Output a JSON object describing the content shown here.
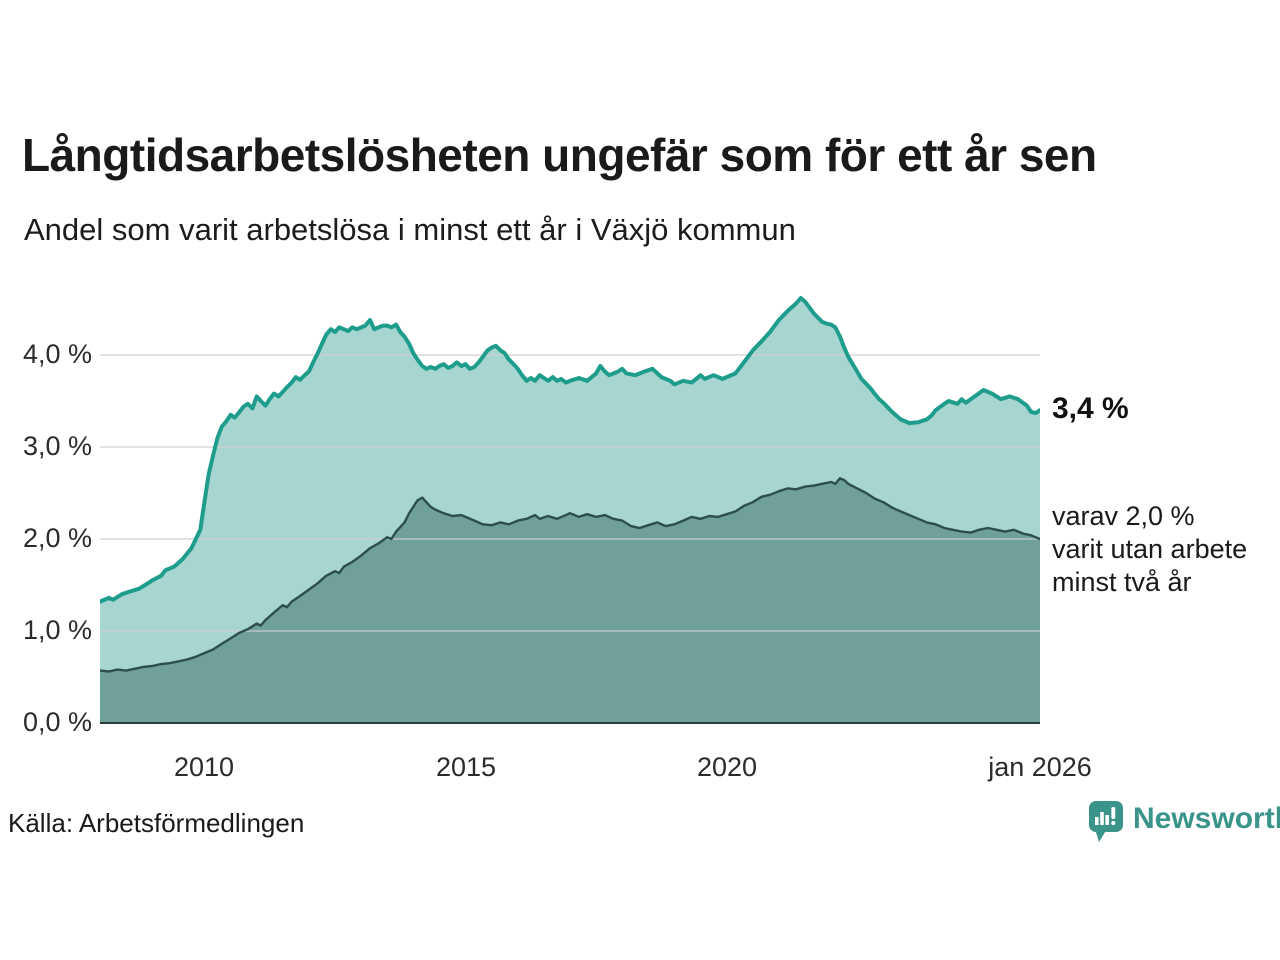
{
  "header": {
    "title": "Långtidsarbetslösheten ungefär som för ett år sen",
    "subtitle": "Andel som varit arbetslösa i minst ett år i Växjö kommun"
  },
  "annotations": {
    "end_value_label": "3,4 %",
    "secondary_lines": [
      "varav 2,0 %",
      "varit utan arbete",
      "minst två år"
    ]
  },
  "footer": {
    "source": "Källa: Arbetsförmedlingen",
    "brand": "Newsworthy"
  },
  "colors": {
    "line_total": "#1e9c8c",
    "fill_total": "#a7d6d0",
    "line_two_year": "#2e4f49",
    "fill_two_year": "#6fa09a",
    "grid": "#cfcfcf",
    "axis": "#2b3a37",
    "brand_teal": "#3b948a"
  },
  "chart_data": {
    "type": "area",
    "title": "Långtidsarbetslösheten ungefär som för ett år sen",
    "subtitle": "Andel som varit arbetslösa i minst ett år i Växjö kommun",
    "grid": true,
    "legend_position": "right-annotations",
    "x_axis": {
      "range": [
        2008,
        2026
      ],
      "ticks": [
        "2010",
        "2015",
        "2020",
        "jan 2026"
      ],
      "tick_years": [
        2010,
        2015,
        2020,
        2026
      ]
    },
    "y_axis": {
      "range": [
        0,
        4.8
      ],
      "unit": "%",
      "ticks": [
        "4,0 %",
        "3,0 %",
        "2,0 %",
        "1,0 %",
        "0,0 %"
      ],
      "tick_values": [
        4,
        3,
        2,
        1,
        0
      ]
    },
    "series": [
      {
        "name": "Arbetslösa minst ett år",
        "end_value": 3.4,
        "end_label": "3,4 %",
        "color": "#1e9c8c",
        "fill": "#a7d6d0",
        "points": [
          [
            2008.0,
            1.32
          ],
          [
            2008.17,
            1.36
          ],
          [
            2008.25,
            1.34
          ],
          [
            2008.42,
            1.4
          ],
          [
            2008.58,
            1.43
          ],
          [
            2008.75,
            1.46
          ],
          [
            2008.92,
            1.52
          ],
          [
            2009.0,
            1.55
          ],
          [
            2009.17,
            1.6
          ],
          [
            2009.25,
            1.66
          ],
          [
            2009.42,
            1.7
          ],
          [
            2009.58,
            1.78
          ],
          [
            2009.75,
            1.9
          ],
          [
            2009.92,
            2.1
          ],
          [
            2010.0,
            2.4
          ],
          [
            2010.08,
            2.7
          ],
          [
            2010.17,
            2.92
          ],
          [
            2010.25,
            3.1
          ],
          [
            2010.33,
            3.22
          ],
          [
            2010.42,
            3.28
          ],
          [
            2010.5,
            3.35
          ],
          [
            2010.58,
            3.32
          ],
          [
            2010.67,
            3.38
          ],
          [
            2010.75,
            3.44
          ],
          [
            2010.83,
            3.47
          ],
          [
            2010.92,
            3.42
          ],
          [
            2011.0,
            3.55
          ],
          [
            2011.08,
            3.5
          ],
          [
            2011.17,
            3.45
          ],
          [
            2011.25,
            3.52
          ],
          [
            2011.33,
            3.58
          ],
          [
            2011.42,
            3.55
          ],
          [
            2011.5,
            3.6
          ],
          [
            2011.58,
            3.65
          ],
          [
            2011.67,
            3.7
          ],
          [
            2011.75,
            3.76
          ],
          [
            2011.83,
            3.73
          ],
          [
            2011.92,
            3.78
          ],
          [
            2012.0,
            3.82
          ],
          [
            2012.08,
            3.92
          ],
          [
            2012.17,
            4.02
          ],
          [
            2012.25,
            4.12
          ],
          [
            2012.33,
            4.22
          ],
          [
            2012.42,
            4.28
          ],
          [
            2012.5,
            4.25
          ],
          [
            2012.58,
            4.3
          ],
          [
            2012.67,
            4.28
          ],
          [
            2012.75,
            4.26
          ],
          [
            2012.83,
            4.3
          ],
          [
            2012.92,
            4.28
          ],
          [
            2013.0,
            4.3
          ],
          [
            2013.08,
            4.32
          ],
          [
            2013.17,
            4.38
          ],
          [
            2013.25,
            4.28
          ],
          [
            2013.33,
            4.3
          ],
          [
            2013.42,
            4.32
          ],
          [
            2013.5,
            4.32
          ],
          [
            2013.58,
            4.3
          ],
          [
            2013.67,
            4.33
          ],
          [
            2013.75,
            4.25
          ],
          [
            2013.83,
            4.2
          ],
          [
            2013.92,
            4.12
          ],
          [
            2014.0,
            4.02
          ],
          [
            2014.08,
            3.95
          ],
          [
            2014.17,
            3.88
          ],
          [
            2014.25,
            3.85
          ],
          [
            2014.33,
            3.87
          ],
          [
            2014.42,
            3.85
          ],
          [
            2014.5,
            3.88
          ],
          [
            2014.58,
            3.9
          ],
          [
            2014.67,
            3.86
          ],
          [
            2014.75,
            3.88
          ],
          [
            2014.83,
            3.92
          ],
          [
            2014.92,
            3.88
          ],
          [
            2015.0,
            3.9
          ],
          [
            2015.08,
            3.85
          ],
          [
            2015.17,
            3.87
          ],
          [
            2015.25,
            3.92
          ],
          [
            2015.33,
            3.98
          ],
          [
            2015.42,
            4.05
          ],
          [
            2015.5,
            4.08
          ],
          [
            2015.58,
            4.1
          ],
          [
            2015.67,
            4.05
          ],
          [
            2015.75,
            4.02
          ],
          [
            2015.83,
            3.95
          ],
          [
            2015.92,
            3.9
          ],
          [
            2016.0,
            3.85
          ],
          [
            2016.08,
            3.78
          ],
          [
            2016.17,
            3.72
          ],
          [
            2016.25,
            3.75
          ],
          [
            2016.33,
            3.72
          ],
          [
            2016.42,
            3.78
          ],
          [
            2016.5,
            3.75
          ],
          [
            2016.58,
            3.72
          ],
          [
            2016.67,
            3.76
          ],
          [
            2016.75,
            3.72
          ],
          [
            2016.83,
            3.74
          ],
          [
            2016.92,
            3.7
          ],
          [
            2017.0,
            3.72
          ],
          [
            2017.17,
            3.75
          ],
          [
            2017.33,
            3.72
          ],
          [
            2017.5,
            3.8
          ],
          [
            2017.58,
            3.88
          ],
          [
            2017.67,
            3.82
          ],
          [
            2017.75,
            3.78
          ],
          [
            2017.92,
            3.82
          ],
          [
            2018.0,
            3.85
          ],
          [
            2018.08,
            3.8
          ],
          [
            2018.25,
            3.78
          ],
          [
            2018.42,
            3.82
          ],
          [
            2018.58,
            3.85
          ],
          [
            2018.75,
            3.76
          ],
          [
            2018.92,
            3.72
          ],
          [
            2019.0,
            3.68
          ],
          [
            2019.17,
            3.72
          ],
          [
            2019.33,
            3.7
          ],
          [
            2019.5,
            3.78
          ],
          [
            2019.58,
            3.74
          ],
          [
            2019.75,
            3.78
          ],
          [
            2019.92,
            3.74
          ],
          [
            2020.0,
            3.76
          ],
          [
            2020.17,
            3.8
          ],
          [
            2020.33,
            3.92
          ],
          [
            2020.5,
            4.05
          ],
          [
            2020.67,
            4.15
          ],
          [
            2020.83,
            4.25
          ],
          [
            2021.0,
            4.38
          ],
          [
            2021.17,
            4.48
          ],
          [
            2021.33,
            4.56
          ],
          [
            2021.42,
            4.62
          ],
          [
            2021.5,
            4.58
          ],
          [
            2021.58,
            4.52
          ],
          [
            2021.67,
            4.45
          ],
          [
            2021.83,
            4.36
          ],
          [
            2021.92,
            4.34
          ],
          [
            2022.0,
            4.33
          ],
          [
            2022.08,
            4.3
          ],
          [
            2022.17,
            4.2
          ],
          [
            2022.25,
            4.08
          ],
          [
            2022.33,
            3.98
          ],
          [
            2022.5,
            3.82
          ],
          [
            2022.58,
            3.74
          ],
          [
            2022.75,
            3.64
          ],
          [
            2022.83,
            3.58
          ],
          [
            2022.92,
            3.52
          ],
          [
            2023.0,
            3.48
          ],
          [
            2023.17,
            3.38
          ],
          [
            2023.33,
            3.3
          ],
          [
            2023.5,
            3.26
          ],
          [
            2023.67,
            3.27
          ],
          [
            2023.83,
            3.3
          ],
          [
            2023.92,
            3.34
          ],
          [
            2024.0,
            3.4
          ],
          [
            2024.17,
            3.47
          ],
          [
            2024.25,
            3.5
          ],
          [
            2024.42,
            3.47
          ],
          [
            2024.5,
            3.52
          ],
          [
            2024.58,
            3.48
          ],
          [
            2024.75,
            3.55
          ],
          [
            2024.92,
            3.62
          ],
          [
            2025.0,
            3.6
          ],
          [
            2025.08,
            3.58
          ],
          [
            2025.25,
            3.52
          ],
          [
            2025.42,
            3.55
          ],
          [
            2025.58,
            3.52
          ],
          [
            2025.75,
            3.45
          ],
          [
            2025.83,
            3.38
          ],
          [
            2025.92,
            3.37
          ],
          [
            2026.0,
            3.4
          ]
        ]
      },
      {
        "name": "varav utan arbete minst två år",
        "end_value": 2.0,
        "end_label": "varav 2,0 % varit utan arbete minst två år",
        "color": "#2e4f49",
        "fill": "#6fa09a",
        "points": [
          [
            2008.0,
            0.57
          ],
          [
            2008.17,
            0.56
          ],
          [
            2008.33,
            0.58
          ],
          [
            2008.5,
            0.57
          ],
          [
            2008.67,
            0.59
          ],
          [
            2008.83,
            0.61
          ],
          [
            2009.0,
            0.62
          ],
          [
            2009.17,
            0.64
          ],
          [
            2009.33,
            0.65
          ],
          [
            2009.5,
            0.67
          ],
          [
            2009.67,
            0.69
          ],
          [
            2009.83,
            0.72
          ],
          [
            2010.0,
            0.76
          ],
          [
            2010.17,
            0.8
          ],
          [
            2010.33,
            0.86
          ],
          [
            2010.5,
            0.92
          ],
          [
            2010.67,
            0.98
          ],
          [
            2010.83,
            1.02
          ],
          [
            2011.0,
            1.08
          ],
          [
            2011.08,
            1.06
          ],
          [
            2011.17,
            1.12
          ],
          [
            2011.33,
            1.2
          ],
          [
            2011.5,
            1.28
          ],
          [
            2011.58,
            1.26
          ],
          [
            2011.67,
            1.32
          ],
          [
            2011.83,
            1.38
          ],
          [
            2012.0,
            1.45
          ],
          [
            2012.17,
            1.52
          ],
          [
            2012.33,
            1.6
          ],
          [
            2012.5,
            1.65
          ],
          [
            2012.58,
            1.63
          ],
          [
            2012.67,
            1.7
          ],
          [
            2012.83,
            1.75
          ],
          [
            2013.0,
            1.82
          ],
          [
            2013.17,
            1.9
          ],
          [
            2013.33,
            1.95
          ],
          [
            2013.5,
            2.02
          ],
          [
            2013.58,
            2.0
          ],
          [
            2013.67,
            2.08
          ],
          [
            2013.83,
            2.18
          ],
          [
            2013.92,
            2.28
          ],
          [
            2014.0,
            2.35
          ],
          [
            2014.08,
            2.42
          ],
          [
            2014.17,
            2.45
          ],
          [
            2014.25,
            2.4
          ],
          [
            2014.33,
            2.35
          ],
          [
            2014.42,
            2.32
          ],
          [
            2014.58,
            2.28
          ],
          [
            2014.75,
            2.25
          ],
          [
            2014.92,
            2.26
          ],
          [
            2015.0,
            2.24
          ],
          [
            2015.17,
            2.2
          ],
          [
            2015.33,
            2.16
          ],
          [
            2015.5,
            2.15
          ],
          [
            2015.67,
            2.18
          ],
          [
            2015.83,
            2.16
          ],
          [
            2016.0,
            2.2
          ],
          [
            2016.17,
            2.22
          ],
          [
            2016.33,
            2.26
          ],
          [
            2016.42,
            2.22
          ],
          [
            2016.58,
            2.25
          ],
          [
            2016.75,
            2.22
          ],
          [
            2016.92,
            2.26
          ],
          [
            2017.0,
            2.28
          ],
          [
            2017.17,
            2.24
          ],
          [
            2017.33,
            2.27
          ],
          [
            2017.5,
            2.24
          ],
          [
            2017.67,
            2.26
          ],
          [
            2017.83,
            2.22
          ],
          [
            2018.0,
            2.2
          ],
          [
            2018.17,
            2.14
          ],
          [
            2018.33,
            2.12
          ],
          [
            2018.5,
            2.15
          ],
          [
            2018.67,
            2.18
          ],
          [
            2018.83,
            2.14
          ],
          [
            2019.0,
            2.16
          ],
          [
            2019.17,
            2.2
          ],
          [
            2019.33,
            2.24
          ],
          [
            2019.5,
            2.22
          ],
          [
            2019.67,
            2.25
          ],
          [
            2019.83,
            2.24
          ],
          [
            2020.0,
            2.27
          ],
          [
            2020.17,
            2.3
          ],
          [
            2020.33,
            2.36
          ],
          [
            2020.5,
            2.4
          ],
          [
            2020.67,
            2.46
          ],
          [
            2020.83,
            2.48
          ],
          [
            2021.0,
            2.52
          ],
          [
            2021.17,
            2.55
          ],
          [
            2021.33,
            2.54
          ],
          [
            2021.5,
            2.57
          ],
          [
            2021.67,
            2.58
          ],
          [
            2021.83,
            2.6
          ],
          [
            2022.0,
            2.62
          ],
          [
            2022.08,
            2.6
          ],
          [
            2022.17,
            2.66
          ],
          [
            2022.25,
            2.64
          ],
          [
            2022.33,
            2.6
          ],
          [
            2022.5,
            2.55
          ],
          [
            2022.67,
            2.5
          ],
          [
            2022.83,
            2.44
          ],
          [
            2023.0,
            2.4
          ],
          [
            2023.17,
            2.34
          ],
          [
            2023.33,
            2.3
          ],
          [
            2023.5,
            2.26
          ],
          [
            2023.67,
            2.22
          ],
          [
            2023.83,
            2.18
          ],
          [
            2024.0,
            2.16
          ],
          [
            2024.17,
            2.12
          ],
          [
            2024.33,
            2.1
          ],
          [
            2024.5,
            2.08
          ],
          [
            2024.67,
            2.07
          ],
          [
            2024.83,
            2.1
          ],
          [
            2025.0,
            2.12
          ],
          [
            2025.17,
            2.1
          ],
          [
            2025.33,
            2.08
          ],
          [
            2025.5,
            2.1
          ],
          [
            2025.67,
            2.06
          ],
          [
            2025.83,
            2.04
          ],
          [
            2026.0,
            2.0
          ]
        ]
      }
    ]
  }
}
